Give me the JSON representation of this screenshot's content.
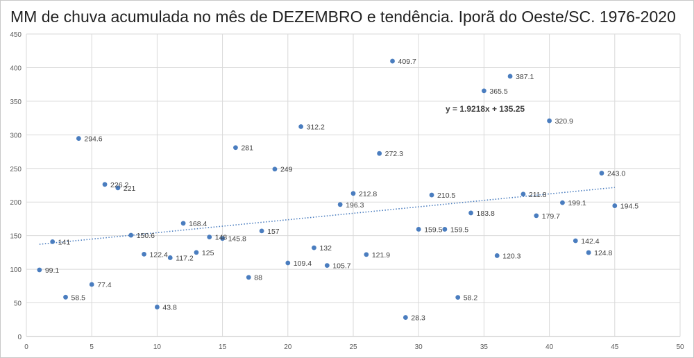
{
  "chart_data": {
    "type": "scatter",
    "title": "MM de chuva acumulada no mês de DEZEMBRO e tendência. Iporã do Oeste/SC. 1976-2020",
    "xlabel": "",
    "ylabel": "",
    "xlim": [
      0,
      50
    ],
    "ylim": [
      0,
      450
    ],
    "xticks": [
      0,
      5,
      10,
      15,
      20,
      25,
      30,
      35,
      40,
      45,
      50
    ],
    "yticks": [
      0,
      50,
      100,
      150,
      200,
      250,
      300,
      350,
      400,
      450
    ],
    "grid": "vertical-and-horizontal",
    "trendline": {
      "equation": "y = 1.9218x + 135.25",
      "slope": 1.9218,
      "intercept": 135.25,
      "x_range": [
        1,
        45
      ],
      "style": "dotted"
    },
    "points": [
      {
        "x": 1,
        "y": 99.1,
        "label": "99.1"
      },
      {
        "x": 2,
        "y": 141,
        "label": "141"
      },
      {
        "x": 3,
        "y": 58.5,
        "label": "58.5"
      },
      {
        "x": 4,
        "y": 294.6,
        "label": "294.6"
      },
      {
        "x": 5,
        "y": 77.4,
        "label": "77.4"
      },
      {
        "x": 6,
        "y": 226.2,
        "label": "226.2"
      },
      {
        "x": 7,
        "y": 221,
        "label": "221"
      },
      {
        "x": 8,
        "y": 150.6,
        "label": "150.6"
      },
      {
        "x": 9,
        "y": 122.4,
        "label": "122.4"
      },
      {
        "x": 10,
        "y": 43.8,
        "label": "43.8"
      },
      {
        "x": 11,
        "y": 117.2,
        "label": "117.2"
      },
      {
        "x": 12,
        "y": 168.4,
        "label": "168.4"
      },
      {
        "x": 13,
        "y": 125,
        "label": "125"
      },
      {
        "x": 14,
        "y": 148,
        "label": "148"
      },
      {
        "x": 15,
        "y": 145.8,
        "label": "145.8"
      },
      {
        "x": 16,
        "y": 281,
        "label": "281"
      },
      {
        "x": 17,
        "y": 88,
        "label": "88"
      },
      {
        "x": 18,
        "y": 157,
        "label": "157"
      },
      {
        "x": 19,
        "y": 249,
        "label": "249"
      },
      {
        "x": 20,
        "y": 109.4,
        "label": "109.4"
      },
      {
        "x": 21,
        "y": 312.2,
        "label": "312.2"
      },
      {
        "x": 22,
        "y": 132,
        "label": "132"
      },
      {
        "x": 23,
        "y": 105.7,
        "label": "105.7"
      },
      {
        "x": 24,
        "y": 196.3,
        "label": "196.3"
      },
      {
        "x": 25,
        "y": 212.8,
        "label": "212.8"
      },
      {
        "x": 26,
        "y": 121.9,
        "label": "121.9"
      },
      {
        "x": 27,
        "y": 272.3,
        "label": "272.3"
      },
      {
        "x": 28,
        "y": 409.7,
        "label": "409.7"
      },
      {
        "x": 29,
        "y": 28.3,
        "label": "28.3"
      },
      {
        "x": 30,
        "y": 159.5,
        "label": "159.5"
      },
      {
        "x": 31,
        "y": 210.5,
        "label": "210.5"
      },
      {
        "x": 32,
        "y": 159.5,
        "label": "159.5"
      },
      {
        "x": 33,
        "y": 58.2,
        "label": "58.2"
      },
      {
        "x": 34,
        "y": 183.8,
        "label": "183.8"
      },
      {
        "x": 35,
        "y": 365.5,
        "label": "365.5"
      },
      {
        "x": 36,
        "y": 120.3,
        "label": "120.3"
      },
      {
        "x": 37,
        "y": 387.1,
        "label": "387.1"
      },
      {
        "x": 38,
        "y": 211.8,
        "label": "211.8"
      },
      {
        "x": 39,
        "y": 179.7,
        "label": "179.7"
      },
      {
        "x": 40,
        "y": 320.9,
        "label": "320.9"
      },
      {
        "x": 41,
        "y": 199.1,
        "label": "199.1"
      },
      {
        "x": 42,
        "y": 142.4,
        "label": "142.4"
      },
      {
        "x": 43,
        "y": 124.8,
        "label": "124.8"
      },
      {
        "x": 44,
        "y": 243.0,
        "label": "243.0"
      },
      {
        "x": 45,
        "y": 194.5,
        "label": "194.5"
      }
    ]
  },
  "colors": {
    "marker": "#4a7dbf",
    "trendline": "#4a7dbf",
    "grid": "#d9d9d9",
    "axis_text": "#595959",
    "label_text": "#404040"
  }
}
